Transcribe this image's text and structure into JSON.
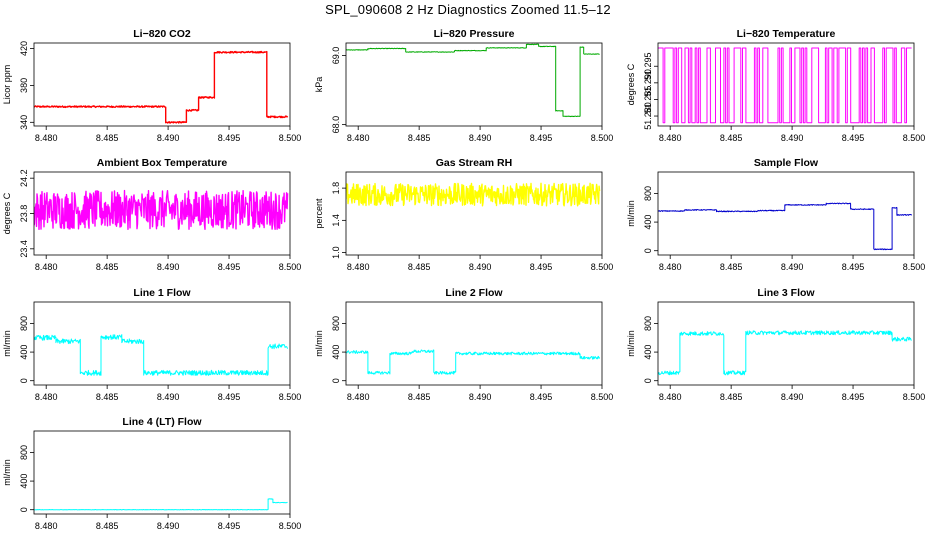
{
  "figure": {
    "title": "SPL_090608  2 Hz Diagnostics Zoomed 11.5–12"
  },
  "chart_data": [
    {
      "type": "line",
      "title": "Li−820 CO2",
      "ylabel": "Licor ppm",
      "color": "#ff0000",
      "xlim": [
        8.479,
        8.5
      ],
      "ylim": [
        336,
        426
      ],
      "xticks": [
        "8.480",
        "8.485",
        "8.490",
        "8.495",
        "8.500"
      ],
      "yticks": [
        {
          "v": 340,
          "label": "340"
        },
        {
          "v": 380,
          "label": "380"
        },
        {
          "v": 420,
          "label": "420"
        }
      ],
      "noise": 0.8,
      "segments": [
        {
          "x0": 8.479,
          "x1": 8.4898,
          "y": 357
        },
        {
          "x0": 8.4898,
          "x1": 8.4915,
          "y": 340
        },
        {
          "x0": 8.4915,
          "x1": 8.4925,
          "y": 353
        },
        {
          "x0": 8.4925,
          "x1": 8.4938,
          "y": 367
        },
        {
          "x0": 8.4938,
          "x1": 8.4981,
          "y": 416
        },
        {
          "x0": 8.4981,
          "x1": 8.4998,
          "y": 346
        }
      ]
    },
    {
      "type": "line",
      "title": "Li−820 Pressure",
      "ylabel": "kPa",
      "color": "#00aa00",
      "xlim": [
        8.479,
        8.5
      ],
      "ylim": [
        67.98,
        69.18
      ],
      "xticks": [
        "8.480",
        "8.485",
        "8.490",
        "8.495",
        "8.500"
      ],
      "yticks": [
        {
          "v": 68.0,
          "label": "68.0"
        },
        {
          "v": 69.0,
          "label": "69.0"
        }
      ],
      "noise": 0.004,
      "segments": [
        {
          "x0": 8.479,
          "x1": 8.4808,
          "y": 69.08
        },
        {
          "x0": 8.4808,
          "x1": 8.4839,
          "y": 69.1
        },
        {
          "x0": 8.4839,
          "x1": 8.4879,
          "y": 69.05
        },
        {
          "x0": 8.4879,
          "x1": 8.4905,
          "y": 69.07
        },
        {
          "x0": 8.4905,
          "x1": 8.4938,
          "y": 69.11
        },
        {
          "x0": 8.4938,
          "x1": 8.4948,
          "y": 69.16
        },
        {
          "x0": 8.4948,
          "x1": 8.4962,
          "y": 69.13
        },
        {
          "x0": 8.4962,
          "x1": 8.4968,
          "y": 68.2
        },
        {
          "x0": 8.4968,
          "x1": 8.4982,
          "y": 68.12
        },
        {
          "x0": 8.4982,
          "x1": 8.4985,
          "y": 69.12
        },
        {
          "x0": 8.4985,
          "x1": 8.4998,
          "y": 69.02
        }
      ]
    },
    {
      "type": "line",
      "title": "Li−820 Temperature",
      "ylabel": "degrees C",
      "color": "#ff00ff",
      "xlim": [
        8.479,
        8.5
      ],
      "ylim": [
        51.277,
        51.302
      ],
      "xticks": [
        "8.480",
        "8.485",
        "8.490",
        "8.495",
        "8.500"
      ],
      "yticks": [
        {
          "v": 51.28,
          "label": "51.280"
        },
        {
          "v": 51.285,
          "label": "51.285"
        },
        {
          "v": 51.29,
          "label": "51.290"
        },
        {
          "v": 51.295,
          "label": "51.295"
        }
      ],
      "noise": 0,
      "toggle": {
        "low": 51.278,
        "high": 51.3005,
        "x0": 8.479,
        "x1": 8.4998
      }
    },
    {
      "type": "line",
      "title": "Ambient Box Temperature",
      "ylabel": "degrees C",
      "color": "#ff00ff",
      "xlim": [
        8.479,
        8.5
      ],
      "ylim": [
        23.33,
        24.27
      ],
      "xticks": [
        "8.480",
        "8.485",
        "8.490",
        "8.495",
        "8.500"
      ],
      "yticks": [
        {
          "v": 23.4,
          "label": "23.4"
        },
        {
          "v": 23.8,
          "label": "23.8"
        },
        {
          "v": 24.2,
          "label": "24.2"
        }
      ],
      "noise": 0.22,
      "segments": [
        {
          "x0": 8.479,
          "x1": 8.4998,
          "y": 23.84
        }
      ]
    },
    {
      "type": "line",
      "title": "Gas Stream RH",
      "ylabel": "percent",
      "color": "#ffff00",
      "xlim": [
        8.479,
        8.5
      ],
      "ylim": [
        0.97,
        2.0
      ],
      "xticks": [
        "8.480",
        "8.485",
        "8.490",
        "8.495",
        "8.500"
      ],
      "yticks": [
        {
          "v": 1.0,
          "label": "1.0"
        },
        {
          "v": 1.4,
          "label": "1.4"
        },
        {
          "v": 1.8,
          "label": "1.8"
        }
      ],
      "noise": 0.14,
      "segments": [
        {
          "x0": 8.479,
          "x1": 8.4998,
          "y": 1.72
        }
      ]
    },
    {
      "type": "line",
      "title": "Sample Flow",
      "ylabel": "ml/min",
      "color": "#0000cc",
      "xlim": [
        8.479,
        8.5
      ],
      "ylim": [
        -60,
        1100
      ],
      "xticks": [
        "8.480",
        "8.485",
        "8.490",
        "8.495",
        "8.500"
      ],
      "yticks": [
        {
          "v": 0,
          "label": "0"
        },
        {
          "v": 400,
          "label": "400"
        },
        {
          "v": 800,
          "label": "800"
        }
      ],
      "noise": 6,
      "segments": [
        {
          "x0": 8.479,
          "x1": 8.4812,
          "y": 555
        },
        {
          "x0": 8.4812,
          "x1": 8.4838,
          "y": 570
        },
        {
          "x0": 8.4838,
          "x1": 8.4872,
          "y": 550
        },
        {
          "x0": 8.4872,
          "x1": 8.4894,
          "y": 560
        },
        {
          "x0": 8.4894,
          "x1": 8.4928,
          "y": 640
        },
        {
          "x0": 8.4928,
          "x1": 8.4948,
          "y": 660
        },
        {
          "x0": 8.4948,
          "x1": 8.4967,
          "y": 580
        },
        {
          "x0": 8.4967,
          "x1": 8.4982,
          "y": 20
        },
        {
          "x0": 8.4982,
          "x1": 8.4986,
          "y": 600
        },
        {
          "x0": 8.4986,
          "x1": 8.4998,
          "y": 500
        }
      ]
    },
    {
      "type": "line",
      "title": "Line 1 Flow",
      "ylabel": "ml/min",
      "color": "#00ffff",
      "xlim": [
        8.479,
        8.5
      ],
      "ylim": [
        -60,
        1100
      ],
      "xticks": [
        "8.480",
        "8.485",
        "8.490",
        "8.495",
        "8.500"
      ],
      "yticks": [
        {
          "v": 0,
          "label": "0"
        },
        {
          "v": 400,
          "label": "400"
        },
        {
          "v": 800,
          "label": "800"
        }
      ],
      "noise": 35,
      "segments": [
        {
          "x0": 8.479,
          "x1": 8.4808,
          "y": 600
        },
        {
          "x0": 8.4808,
          "x1": 8.4828,
          "y": 550
        },
        {
          "x0": 8.4828,
          "x1": 8.4845,
          "y": 110
        },
        {
          "x0": 8.4845,
          "x1": 8.4862,
          "y": 610
        },
        {
          "x0": 8.4862,
          "x1": 8.488,
          "y": 550
        },
        {
          "x0": 8.488,
          "x1": 8.4982,
          "y": 110
        },
        {
          "x0": 8.4982,
          "x1": 8.4998,
          "y": 480
        }
      ]
    },
    {
      "type": "line",
      "title": "Line 2 Flow",
      "ylabel": "ml/min",
      "color": "#00ffff",
      "xlim": [
        8.479,
        8.5
      ],
      "ylim": [
        -60,
        1100
      ],
      "xticks": [
        "8.480",
        "8.485",
        "8.490",
        "8.495",
        "8.500"
      ],
      "yticks": [
        {
          "v": 0,
          "label": "0"
        },
        {
          "v": 400,
          "label": "400"
        },
        {
          "v": 800,
          "label": "800"
        }
      ],
      "noise": 20,
      "segments": [
        {
          "x0": 8.479,
          "x1": 8.4808,
          "y": 400
        },
        {
          "x0": 8.4808,
          "x1": 8.4826,
          "y": 110
        },
        {
          "x0": 8.4826,
          "x1": 8.4844,
          "y": 380
        },
        {
          "x0": 8.4844,
          "x1": 8.4862,
          "y": 410
        },
        {
          "x0": 8.4862,
          "x1": 8.488,
          "y": 110
        },
        {
          "x0": 8.488,
          "x1": 8.4982,
          "y": 380
        },
        {
          "x0": 8.4982,
          "x1": 8.4998,
          "y": 320
        }
      ]
    },
    {
      "type": "line",
      "title": "Line 3 Flow",
      "ylabel": "ml/min",
      "color": "#00ffff",
      "xlim": [
        8.479,
        8.5
      ],
      "ylim": [
        -60,
        1100
      ],
      "xticks": [
        "8.480",
        "8.485",
        "8.490",
        "8.495",
        "8.500"
      ],
      "yticks": [
        {
          "v": 0,
          "label": "0"
        },
        {
          "v": 400,
          "label": "400"
        },
        {
          "v": 800,
          "label": "800"
        }
      ],
      "noise": 28,
      "segments": [
        {
          "x0": 8.479,
          "x1": 8.4808,
          "y": 110
        },
        {
          "x0": 8.4808,
          "x1": 8.4844,
          "y": 660
        },
        {
          "x0": 8.4844,
          "x1": 8.4862,
          "y": 110
        },
        {
          "x0": 8.4862,
          "x1": 8.4982,
          "y": 670
        },
        {
          "x0": 8.4982,
          "x1": 8.4998,
          "y": 580
        }
      ]
    },
    {
      "type": "line",
      "title": "Line 4 (LT) Flow",
      "ylabel": "ml/min",
      "color": "#00ffff",
      "xlim": [
        8.479,
        8.5
      ],
      "ylim": [
        -60,
        1100
      ],
      "xticks": [
        "8.480",
        "8.485",
        "8.490",
        "8.495",
        "8.500"
      ],
      "yticks": [
        {
          "v": 0,
          "label": "0"
        },
        {
          "v": 400,
          "label": "400"
        },
        {
          "v": 800,
          "label": "800"
        }
      ],
      "noise": 3,
      "segments": [
        {
          "x0": 8.479,
          "x1": 8.4982,
          "y": 0
        },
        {
          "x0": 8.4982,
          "x1": 8.4986,
          "y": 150
        },
        {
          "x0": 8.4986,
          "x1": 8.4998,
          "y": 100
        }
      ]
    }
  ]
}
